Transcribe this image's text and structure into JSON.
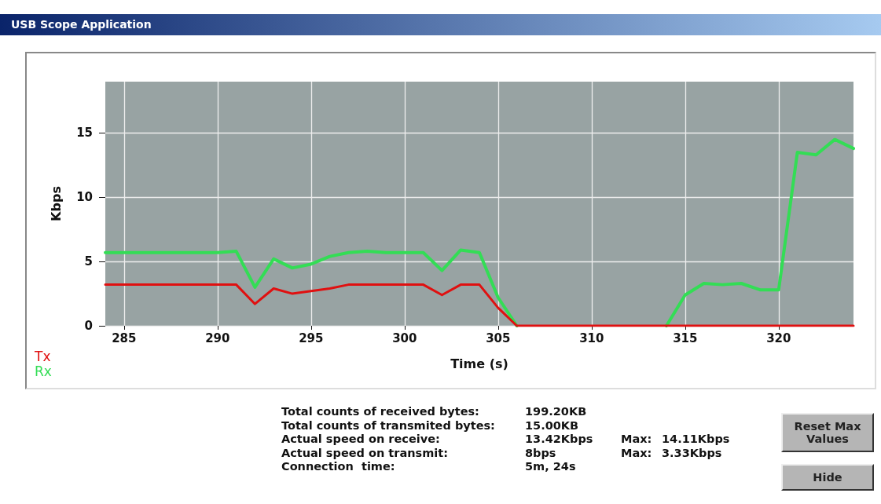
{
  "chart_data": {
    "type": "line",
    "title": "USB Scope Application",
    "xlabel": "Time (s)",
    "ylabel": "Kbps",
    "x": [
      284,
      285,
      286,
      287,
      288,
      289,
      290,
      291,
      292,
      293,
      294,
      295,
      296,
      297,
      298,
      299,
      300,
      301,
      302,
      303,
      304,
      305,
      306,
      307,
      308,
      309,
      310,
      311,
      312,
      313,
      314,
      315,
      316,
      317,
      318,
      319,
      320,
      321,
      322,
      323,
      324
    ],
    "series": [
      {
        "name": "Tx",
        "color": "#e01010",
        "values": [
          3.2,
          3.2,
          3.2,
          3.2,
          3.2,
          3.2,
          3.2,
          3.2,
          1.7,
          2.9,
          2.5,
          2.7,
          2.9,
          3.2,
          3.2,
          3.2,
          3.2,
          3.2,
          2.4,
          3.2,
          3.2,
          1.4,
          0,
          0,
          0,
          0,
          0,
          0,
          0,
          0,
          0,
          0,
          0,
          0,
          0,
          0,
          0,
          0,
          0,
          0,
          0
        ]
      },
      {
        "name": "Rx",
        "color": "#33dd55",
        "values": [
          5.7,
          5.7,
          5.7,
          5.7,
          5.7,
          5.7,
          5.7,
          5.8,
          3.0,
          5.2,
          4.5,
          4.8,
          5.4,
          5.7,
          5.8,
          5.7,
          5.7,
          5.7,
          4.3,
          5.9,
          5.7,
          2.2,
          0,
          null,
          null,
          null,
          null,
          null,
          null,
          null,
          0,
          2.4,
          3.3,
          3.2,
          3.3,
          2.8,
          2.8,
          13.5,
          13.3,
          14.5,
          13.8
        ]
      }
    ],
    "xlim": [
      284,
      324
    ],
    "xticks": [
      285,
      290,
      295,
      300,
      305,
      310,
      315,
      320
    ],
    "ylim": [
      0,
      19
    ],
    "yticks": [
      0,
      5,
      10,
      15
    ],
    "grid": true,
    "legend": "bottom left",
    "marker": "none",
    "line_style": "solid",
    "annotations": [
      "Total counts of received bytes:",
      "199.20KB",
      "Total counts of transmited bytes:",
      "15.00KB",
      "Actual speed on receive:",
      "13.42Kbps",
      "Max:",
      "14.11Kbps",
      "Actual speed on transmit:",
      "8bps",
      "Max:",
      "3.33Kbps",
      "Connection  time:",
      "5m, 24s",
      "Reset Max Values",
      "Hide"
    ]
  }
}
